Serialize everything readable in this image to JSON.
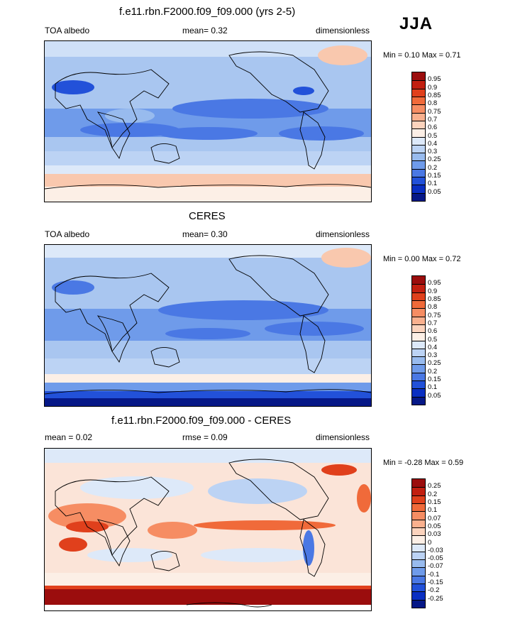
{
  "season": "JJA",
  "panels": [
    {
      "title": "f.e11.rbn.F2000.f09_f09.000 (yrs 2-5)",
      "left": "TOA albedo",
      "center": "mean=   0.32",
      "right": "dimensionless",
      "minmax": "Min =   0.10 Max =   0.71",
      "levels": [
        "0.95",
        "0.9",
        "0.85",
        "0.8",
        "0.75",
        "0.7",
        "0.6",
        "0.5",
        "0.4",
        "0.3",
        "0.25",
        "0.2",
        "0.15",
        "0.1",
        "0.05"
      ],
      "colors": [
        "#9b0d0d",
        "#c21f10",
        "#e0401c",
        "#f06a3a",
        "#f68d63",
        "#f9b08e",
        "#fbd3bd",
        "#fcefe6",
        "#dde9f9",
        "#bcd3f4",
        "#98bbee",
        "#6f9bea",
        "#4a78e4",
        "#2251d9",
        "#0a2fc2",
        "#061887"
      ]
    },
    {
      "title": "CERES",
      "left": "TOA albedo",
      "center": "mean=   0.30",
      "right": "dimensionless",
      "minmax": "Min =   0.00 Max =   0.72",
      "levels": [
        "0.95",
        "0.9",
        "0.85",
        "0.8",
        "0.75",
        "0.7",
        "0.6",
        "0.5",
        "0.4",
        "0.3",
        "0.25",
        "0.2",
        "0.15",
        "0.1",
        "0.05"
      ],
      "colors": [
        "#9b0d0d",
        "#c21f10",
        "#e0401c",
        "#f06a3a",
        "#f68d63",
        "#f9b08e",
        "#fbd3bd",
        "#fcefe6",
        "#dde9f9",
        "#bcd3f4",
        "#98bbee",
        "#6f9bea",
        "#4a78e4",
        "#2251d9",
        "#0a2fc2",
        "#061887"
      ]
    },
    {
      "title": "f.e11.rbn.F2000.f09_f09.000 - CERES",
      "left": "mean =   0.02",
      "center": "rmse =   0.09",
      "right": "dimensionless",
      "minmax": "Min =  -0.28 Max =   0.59",
      "levels": [
        "0.25",
        "0.2",
        "0.15",
        "0.1",
        "0.07",
        "0.05",
        "0.03",
        "0",
        "-0.03",
        "-0.05",
        "-0.07",
        "-0.1",
        "-0.15",
        "-0.2",
        "-0.25"
      ],
      "colors": [
        "#9b0d0d",
        "#c21f10",
        "#e0401c",
        "#f06a3a",
        "#f68d63",
        "#f9b08e",
        "#fbd3bd",
        "#fcefe6",
        "#dde9f9",
        "#bcd3f4",
        "#98bbee",
        "#6f9bea",
        "#4a78e4",
        "#2251d9",
        "#0a2fc2",
        "#061887"
      ]
    }
  ]
}
